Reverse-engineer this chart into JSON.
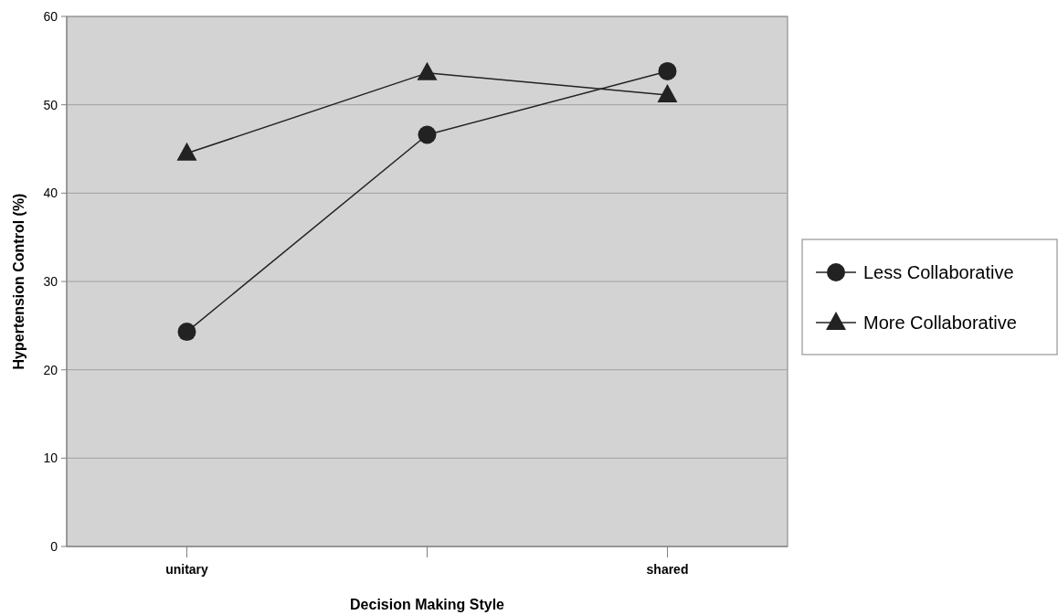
{
  "chart_data": {
    "type": "line",
    "xlabel": "Decision Making Style",
    "ylabel": "Hypertension Control (%)",
    "categories": [
      "unitary",
      null,
      "shared"
    ],
    "series": [
      {
        "name": "Less Collaborative",
        "color": "#222222",
        "marker": "circle",
        "values": [
          24.3,
          46.6,
          53.8
        ]
      },
      {
        "name": "More Collaborative",
        "color": "#222222",
        "marker": "triangle",
        "values": [
          44.5,
          53.6,
          51.1
        ]
      }
    ],
    "ylim": [
      0,
      60
    ],
    "yticks": [
      0,
      10,
      20,
      30,
      40,
      50,
      60
    ],
    "grid": "y",
    "legend": "right"
  }
}
